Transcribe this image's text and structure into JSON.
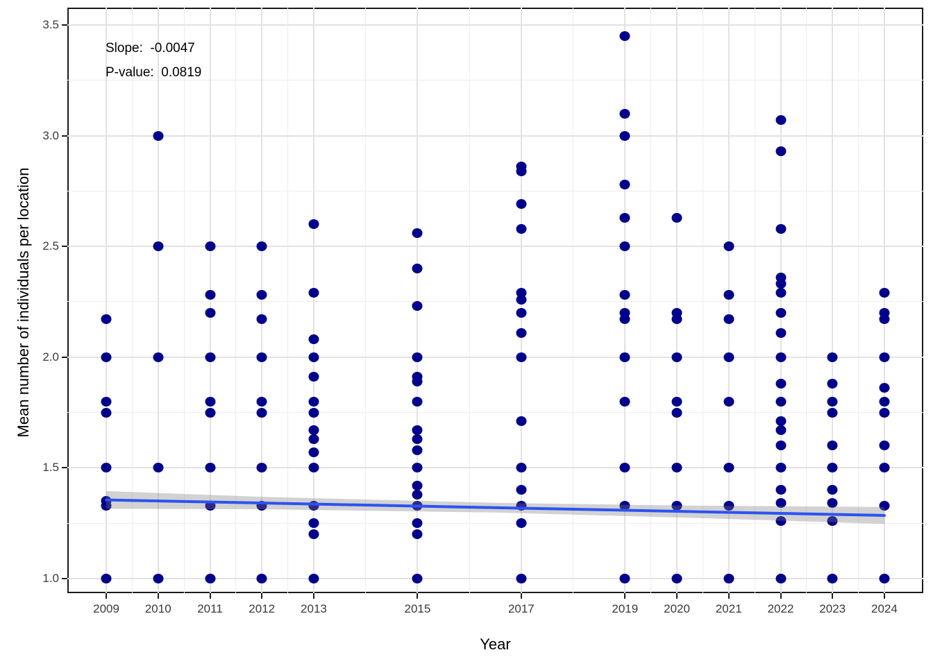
{
  "chart_data": {
    "type": "scatter",
    "xlabel": "Year",
    "ylabel": "Mean number of individuals per location",
    "annotation": {
      "slope_label": "Slope:  -0.0047",
      "pvalue_label": "P-value:  0.0819"
    },
    "x_domain": [
      2008.25,
      2024.75
    ],
    "y_domain": [
      0.934,
      3.578
    ],
    "x_breaks": [
      2009,
      2010,
      2011,
      2012,
      2013,
      2015,
      2017,
      2019,
      2020,
      2021,
      2022,
      2023,
      2024
    ],
    "x_break_labels": [
      "2009",
      "2010",
      "2011",
      "2012",
      "2013",
      "2015",
      "2017",
      "2019",
      "2020",
      "2021",
      "2022",
      "2023",
      "2024"
    ],
    "x_minor_breaks": [
      2009.5,
      2010.5,
      2011.5,
      2012.5,
      2014,
      2016,
      2018,
      2019.5,
      2020.5,
      2021.5,
      2022.5,
      2023.5
    ],
    "y_breaks": [
      1.0,
      1.5,
      2.0,
      2.5,
      3.0,
      3.5
    ],
    "y_break_labels": [
      "1.0",
      "1.5",
      "2.0",
      "2.5",
      "3.0",
      "3.5"
    ],
    "y_minor_breaks": [
      1.25,
      1.75,
      2.25,
      2.75,
      3.25
    ],
    "grid": true,
    "legend": "none",
    "points": [
      {
        "year": 2009,
        "values": [
          2.17,
          2.0,
          1.8,
          1.75,
          1.5,
          1.35,
          1.33,
          1.0
        ]
      },
      {
        "year": 2010,
        "values": [
          3.0,
          2.5,
          2.0,
          1.5,
          1.0
        ]
      },
      {
        "year": 2011,
        "values": [
          2.5,
          2.28,
          2.2,
          2.0,
          1.8,
          1.75,
          1.5,
          1.33,
          1.0
        ]
      },
      {
        "year": 2012,
        "values": [
          2.5,
          2.28,
          2.17,
          2.0,
          1.8,
          1.75,
          1.5,
          1.33,
          1.0
        ]
      },
      {
        "year": 2013,
        "values": [
          2.6,
          2.29,
          2.08,
          2.0,
          1.91,
          1.8,
          1.75,
          1.67,
          1.63,
          1.57,
          1.5,
          1.33,
          1.25,
          1.2,
          1.0
        ]
      },
      {
        "year": 2015,
        "values": [
          2.56,
          2.4,
          2.23,
          2.0,
          1.91,
          1.89,
          1.8,
          1.67,
          1.63,
          1.58,
          1.5,
          1.42,
          1.38,
          1.33,
          1.25,
          1.2,
          1.0
        ]
      },
      {
        "year": 2017,
        "values": [
          2.86,
          2.84,
          2.69,
          2.58,
          2.29,
          2.26,
          2.2,
          2.11,
          2.0,
          1.71,
          1.5,
          1.4,
          1.33,
          1.25,
          1.0
        ]
      },
      {
        "year": 2019,
        "values": [
          3.45,
          3.1,
          3.0,
          2.78,
          2.63,
          2.5,
          2.28,
          2.2,
          2.17,
          2.0,
          1.8,
          1.5,
          1.33,
          1.0
        ]
      },
      {
        "year": 2020,
        "values": [
          2.63,
          2.2,
          2.17,
          2.0,
          1.8,
          1.75,
          1.5,
          1.33,
          1.0
        ]
      },
      {
        "year": 2021,
        "values": [
          2.5,
          2.28,
          2.17,
          2.0,
          1.8,
          1.5,
          1.33,
          1.0
        ]
      },
      {
        "year": 2022,
        "values": [
          3.07,
          2.93,
          2.58,
          2.36,
          2.33,
          2.29,
          2.2,
          2.11,
          2.0,
          1.88,
          1.8,
          1.71,
          1.67,
          1.6,
          1.5,
          1.4,
          1.34,
          1.26,
          1.0
        ]
      },
      {
        "year": 2023,
        "values": [
          2.0,
          1.88,
          1.8,
          1.75,
          1.6,
          1.5,
          1.4,
          1.34,
          1.26,
          1.0
        ]
      },
      {
        "year": 2024,
        "values": [
          2.29,
          2.2,
          2.17,
          2.0,
          1.86,
          1.8,
          1.75,
          1.6,
          1.5,
          1.33,
          1.0
        ]
      }
    ],
    "regression": {
      "x": [
        2009,
        2024
      ],
      "y": [
        1.355,
        1.285
      ],
      "slope": -0.0047,
      "p_value": 0.0819
    },
    "ribbon": {
      "x": [
        2009,
        2012,
        2016.5,
        2020,
        2024
      ],
      "upper": [
        1.395,
        1.369,
        1.342,
        1.33,
        1.323
      ],
      "lower": [
        1.315,
        1.313,
        1.298,
        1.276,
        1.247
      ]
    },
    "colors": {
      "point": "#00008b",
      "line": "#2c52f2",
      "ribbon": "#7f7f7f",
      "ribbon_opacity": 0.35,
      "gridline_major": "#e2e2e2",
      "gridline_minor": "#ededed",
      "panel_border": "#1a1a1a",
      "axis_text": "#3a3a3a"
    }
  }
}
